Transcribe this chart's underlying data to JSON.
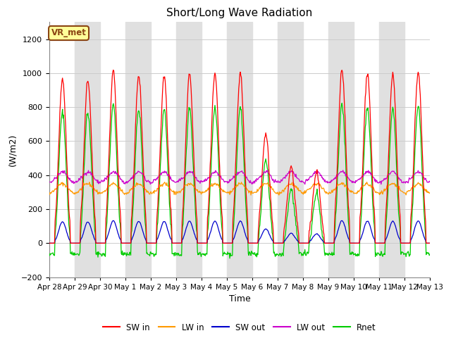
{
  "title": "Short/Long Wave Radiation",
  "xlabel": "Time",
  "ylabel": "(W/m2)",
  "ylim": [
    -200,
    1300
  ],
  "yticks": [
    -200,
    0,
    200,
    400,
    600,
    800,
    1000,
    1200
  ],
  "station_label": "VR_met",
  "num_days": 15,
  "colors": {
    "SW_in": "#ff0000",
    "LW_in": "#ff9900",
    "SW_out": "#0000cc",
    "LW_out": "#cc00cc",
    "Rnet": "#00cc00"
  },
  "legend_labels": [
    "SW in",
    "LW in",
    "SW out",
    "LW out",
    "Rnet"
  ],
  "grid_color": "#cccccc",
  "band_color": "#e0e0e0",
  "sw_peaks": [
    970,
    960,
    1010,
    990,
    980,
    1000,
    990,
    1000,
    650,
    450,
    420,
    1020,
    1000,
    990,
    1010
  ],
  "tick_labels": [
    "Apr 28",
    "Apr 29",
    "Apr 30",
    "May 1",
    "May 2",
    "May 3",
    "May 4",
    "May 5",
    "May 6",
    "May 7",
    "May 8",
    "May 9",
    "May 10",
    "May 11",
    "May 12",
    "May 13"
  ]
}
